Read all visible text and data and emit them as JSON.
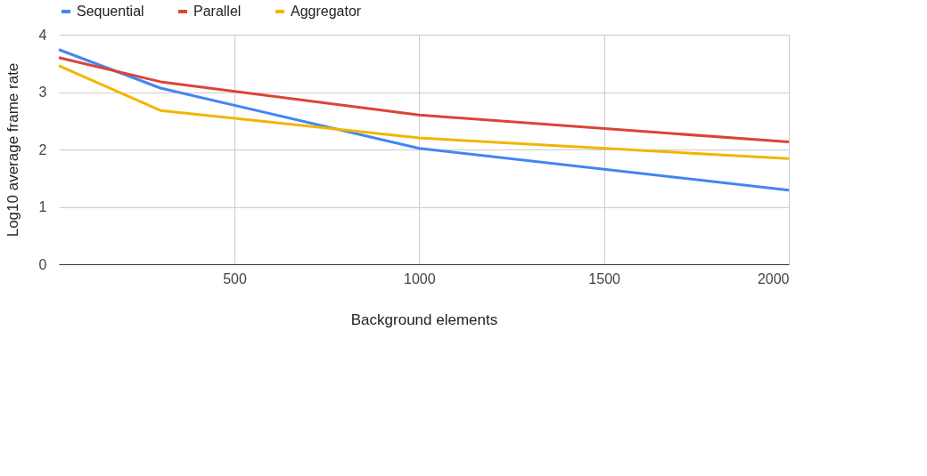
{
  "chart_data": {
    "type": "line",
    "xlabel": "Background elements",
    "ylabel": "Log10 average frame rate",
    "x": [
      25,
      300,
      1000,
      2000
    ],
    "series": [
      {
        "name": "Sequential",
        "color": "#4285f4",
        "values": [
          3.74,
          3.07,
          2.02,
          1.29
        ]
      },
      {
        "name": "Parallel",
        "color": "#db4437",
        "values": [
          3.6,
          3.18,
          2.6,
          2.13
        ]
      },
      {
        "name": "Aggregator",
        "color": "#f4b400",
        "values": [
          3.46,
          2.68,
          2.2,
          1.84
        ]
      }
    ],
    "xlim": [
      25,
      2000
    ],
    "xticks": [
      500,
      1000,
      1500,
      2000
    ],
    "ylim": [
      0,
      4
    ],
    "yticks": [
      0,
      1,
      2,
      3,
      4
    ],
    "grid": true,
    "legend": "top",
    "marker": "none",
    "line_style": "solid"
  }
}
